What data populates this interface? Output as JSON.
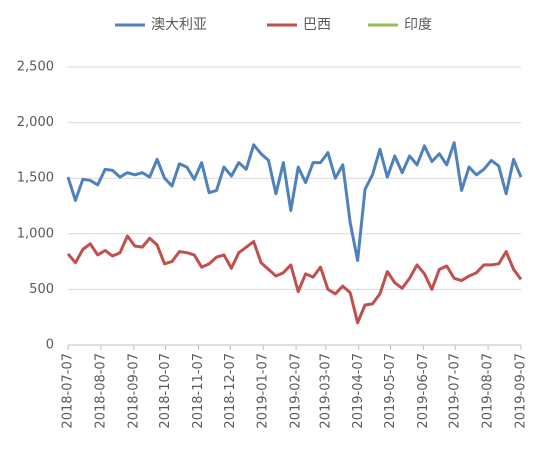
{
  "chart_data": {
    "type": "line",
    "x": [
      "2018-07-07",
      "2018-07-14",
      "2018-07-21",
      "2018-07-28",
      "2018-08-04",
      "2018-08-11",
      "2018-08-18",
      "2018-08-25",
      "2018-09-01",
      "2018-09-08",
      "2018-09-15",
      "2018-09-22",
      "2018-09-29",
      "2018-10-06",
      "2018-10-13",
      "2018-10-20",
      "2018-10-27",
      "2018-11-03",
      "2018-11-10",
      "2018-11-17",
      "2018-11-24",
      "2018-12-01",
      "2018-12-08",
      "2018-12-15",
      "2018-12-22",
      "2018-12-29",
      "2019-01-05",
      "2019-01-12",
      "2019-01-19",
      "2019-01-26",
      "2019-02-02",
      "2019-02-09",
      "2019-02-16",
      "2019-02-23",
      "2019-03-02",
      "2019-03-09",
      "2019-03-16",
      "2019-03-23",
      "2019-03-30",
      "2019-04-06",
      "2019-04-13",
      "2019-04-20",
      "2019-04-27",
      "2019-05-04",
      "2019-05-11",
      "2019-05-18",
      "2019-05-25",
      "2019-06-01",
      "2019-06-08",
      "2019-06-15",
      "2019-06-22",
      "2019-06-29",
      "2019-07-06",
      "2019-07-13",
      "2019-07-20",
      "2019-07-27",
      "2019-08-03",
      "2019-08-10",
      "2019-08-17",
      "2019-08-24",
      "2019-08-31",
      "2019-09-07"
    ],
    "series": [
      {
        "name": "澳大利亚",
        "color": "#4f81bd",
        "values": [
          1510,
          1300,
          1490,
          1480,
          1440,
          1580,
          1570,
          1510,
          1550,
          1530,
          1550,
          1510,
          1670,
          1500,
          1430,
          1630,
          1600,
          1490,
          1640,
          1370,
          1390,
          1600,
          1520,
          1640,
          1580,
          1800,
          1720,
          1660,
          1360,
          1640,
          1210,
          1600,
          1460,
          1640,
          1640,
          1730,
          1500,
          1620,
          1100,
          760,
          1400,
          1530,
          1760,
          1510,
          1700,
          1550,
          1700,
          1620,
          1790,
          1650,
          1720,
          1620,
          1820,
          1390,
          1600,
          1530,
          1580,
          1660,
          1610,
          1360,
          1670,
          1510
        ]
      },
      {
        "name": "巴西",
        "color": "#c0504d",
        "values": [
          820,
          740,
          860,
          910,
          810,
          850,
          800,
          830,
          980,
          890,
          880,
          960,
          900,
          730,
          750,
          840,
          830,
          810,
          700,
          730,
          790,
          810,
          690,
          830,
          880,
          930,
          740,
          680,
          620,
          650,
          720,
          480,
          640,
          610,
          700,
          500,
          460,
          530,
          470,
          200,
          360,
          370,
          460,
          660,
          560,
          510,
          600,
          720,
          640,
          500,
          680,
          710,
          600,
          580,
          620,
          650,
          720,
          720,
          730,
          840,
          680,
          590
        ]
      },
      {
        "name": "印度",
        "color": "#9bbb59",
        "values": [
          null,
          null,
          null,
          null,
          null,
          null,
          null,
          null,
          null,
          null,
          null,
          null,
          null,
          null,
          null,
          null,
          null,
          null,
          null,
          null,
          null,
          null,
          null,
          null,
          null,
          null,
          null,
          null,
          null,
          null,
          null,
          null,
          null,
          null,
          null,
          null,
          null,
          null,
          null,
          null,
          null,
          null,
          null,
          null,
          null,
          null,
          null,
          null,
          null,
          null,
          null,
          null,
          null,
          null,
          null,
          null,
          null,
          null,
          null,
          null,
          null,
          null
        ]
      }
    ],
    "xticks": [
      "2018-07-07",
      "2018-08-07",
      "2018-09-07",
      "2018-10-07",
      "2018-11-07",
      "2018-12-07",
      "2019-01-07",
      "2019-02-07",
      "2019-03-07",
      "2019-04-07",
      "2019-05-07",
      "2019-06-07",
      "2019-07-07",
      "2019-08-07",
      "2019-09-07"
    ],
    "ylim": [
      0,
      2500
    ],
    "yticks": [
      0,
      500,
      {
        "value": 1000,
        "label": "1,000"
      },
      {
        "value": 1500,
        "label": "1,500"
      },
      {
        "value": 2000,
        "label": "2,000"
      },
      {
        "value": 2500,
        "label": "2,500"
      }
    ],
    "grid": true,
    "legend": "top"
  }
}
